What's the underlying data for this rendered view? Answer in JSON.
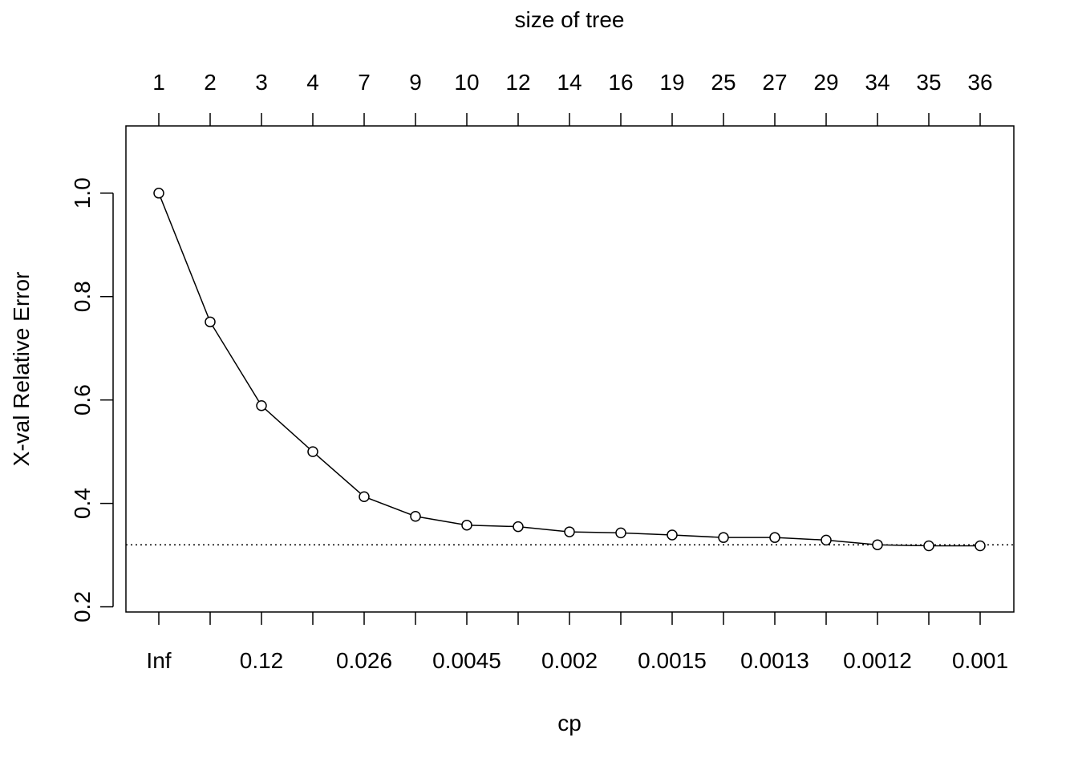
{
  "chart_data": {
    "type": "line",
    "top_axis_title": "size of tree",
    "xlabel": "cp",
    "ylabel": "X-val Relative Error",
    "top_tick_labels": [
      "1",
      "2",
      "3",
      "4",
      "7",
      "9",
      "10",
      "12",
      "14",
      "16",
      "19",
      "25",
      "27",
      "29",
      "34",
      "35",
      "36"
    ],
    "bottom_tick_labels": [
      "Inf",
      "",
      "0.12",
      "",
      "0.026",
      "",
      "0.0045",
      "",
      "0.002",
      "",
      "0.0015",
      "",
      "0.0013",
      "",
      "0.0012",
      "",
      "0.001"
    ],
    "ylim": [
      0.19,
      1.13
    ],
    "yticks": [
      0.2,
      0.4,
      0.6,
      0.8,
      1.0
    ],
    "ytick_labels": [
      "0.2",
      "0.4",
      "0.6",
      "0.8",
      "1.0"
    ],
    "values": [
      1.0,
      0.751,
      0.589,
      0.5,
      0.413,
      0.375,
      0.358,
      0.355,
      0.345,
      0.343,
      0.339,
      0.334,
      0.334,
      0.329,
      0.32,
      0.318,
      0.318
    ],
    "reference_line": 0.32,
    "marker": "open-circle",
    "grid": false
  }
}
